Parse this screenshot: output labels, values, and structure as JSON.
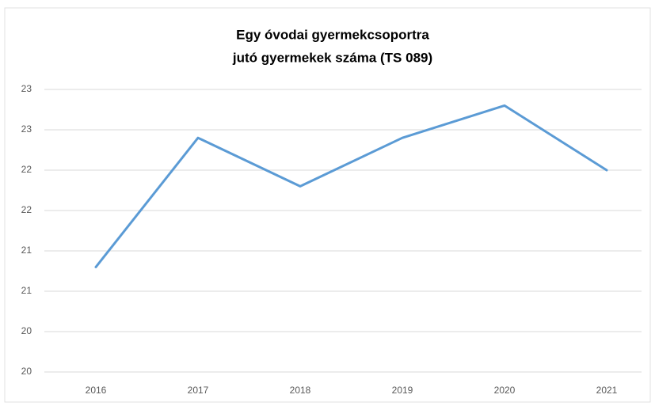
{
  "chart_data": {
    "type": "line",
    "title": [
      "Egy óvodai gyermekcsoportra",
      "jutó gyermekek száma (TS 089)"
    ],
    "categories": [
      "2016",
      "2017",
      "2018",
      "2019",
      "2020",
      "2021"
    ],
    "series": [
      {
        "name": "TS 089",
        "color": "#5b9bd5",
        "values": [
          21.1,
          22.7,
          22.1,
          22.7,
          23.1,
          22.3
        ]
      }
    ],
    "ylim": [
      19.8,
      23.3
    ],
    "yticks": [
      {
        "value": 19.8,
        "label": "20"
      },
      {
        "value": 20.3,
        "label": "20"
      },
      {
        "value": 20.8,
        "label": "21"
      },
      {
        "value": 21.3,
        "label": "21"
      },
      {
        "value": 21.8,
        "label": "22"
      },
      {
        "value": 22.3,
        "label": "22"
      },
      {
        "value": 22.8,
        "label": "23"
      },
      {
        "value": 23.3,
        "label": "23"
      }
    ],
    "grid": true,
    "legend": false
  }
}
